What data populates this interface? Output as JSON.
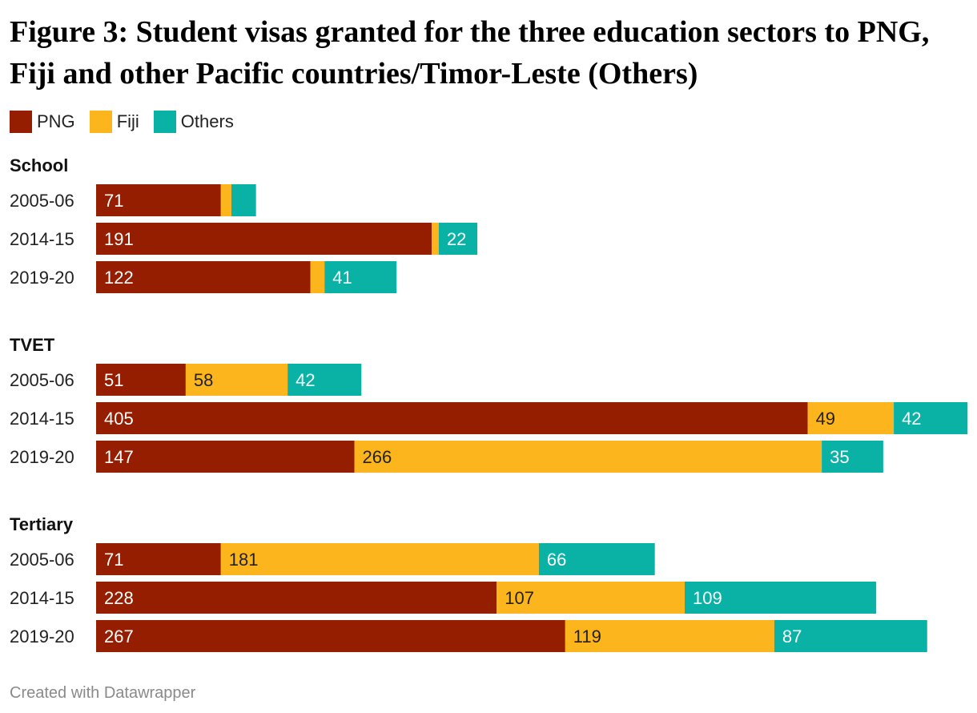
{
  "title": "Figure 3: Student visas granted for the three education sectors to PNG, Fiji and other Pacific countries/Timor-Leste (Others)",
  "footer": "Created with Datawrapper",
  "chart_data": {
    "type": "bar",
    "orientation": "horizontal",
    "stacked": true,
    "legend_position": "top-left",
    "series": [
      {
        "name": "PNG",
        "color": "#951e00"
      },
      {
        "name": "Fiji",
        "color": "#fcb51d"
      },
      {
        "name": "Others",
        "color": "#09b2a5"
      }
    ],
    "groups": [
      {
        "title": "School",
        "rows": [
          {
            "label": "2005-06",
            "values": [
              71,
              6,
              14
            ],
            "labels": [
              "71",
              "",
              ""
            ]
          },
          {
            "label": "2014-15",
            "values": [
              191,
              4,
              22
            ],
            "labels": [
              "191",
              "",
              "22"
            ]
          },
          {
            "label": "2019-20",
            "values": [
              122,
              8,
              41
            ],
            "labels": [
              "122",
              "",
              "41"
            ]
          }
        ]
      },
      {
        "title": "TVET",
        "rows": [
          {
            "label": "2005-06",
            "values": [
              51,
              58,
              42
            ],
            "labels": [
              "51",
              "58",
              "42"
            ]
          },
          {
            "label": "2014-15",
            "values": [
              405,
              49,
              42
            ],
            "labels": [
              "405",
              "49",
              "42"
            ]
          },
          {
            "label": "2019-20",
            "values": [
              147,
              266,
              35
            ],
            "labels": [
              "147",
              "266",
              "35"
            ]
          }
        ]
      },
      {
        "title": "Tertiary",
        "rows": [
          {
            "label": "2005-06",
            "values": [
              71,
              181,
              66
            ],
            "labels": [
              "71",
              "181",
              "66"
            ]
          },
          {
            "label": "2014-15",
            "values": [
              228,
              107,
              109
            ],
            "labels": [
              "228",
              "107",
              "109"
            ]
          },
          {
            "label": "2019-20",
            "values": [
              267,
              119,
              87
            ],
            "labels": [
              "267",
              "119",
              "87"
            ]
          }
        ]
      }
    ]
  }
}
